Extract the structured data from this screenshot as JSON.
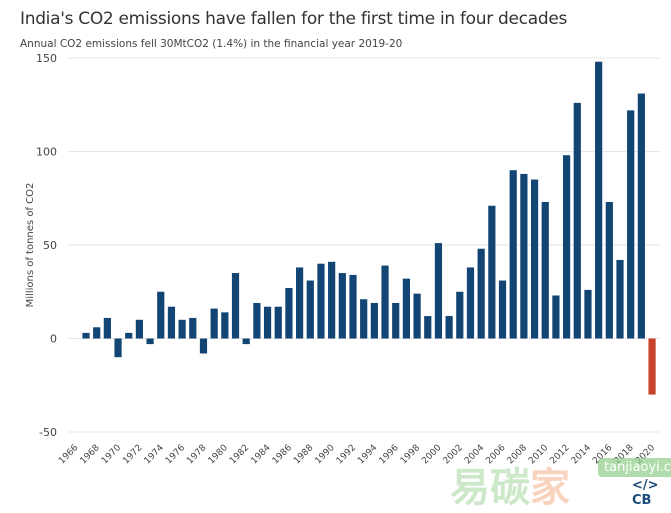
{
  "chart_data": {
    "type": "bar",
    "title": "India's CO2 emissions have fallen for the first time in four decades",
    "subtitle": "Annual CO2 emissions fell 30MtCO2 (1.4%) in the financial year 2019-20",
    "xlabel": "",
    "ylabel": "Millions of tonnes of CO2",
    "ylim": [
      -50,
      150
    ],
    "yticks": [
      "150",
      "100",
      "50",
      "0",
      "-50"
    ],
    "ytick_values": [
      150,
      100,
      50,
      0,
      -50
    ],
    "xticks": [
      "1966",
      "1968",
      "1970",
      "1972",
      "1974",
      "1976",
      "1978",
      "1980",
      "1982",
      "1984",
      "1986",
      "1988",
      "1990",
      "1992",
      "1994",
      "1996",
      "1998",
      "2000",
      "2002",
      "2004",
      "2006",
      "2008",
      "2010",
      "2012",
      "2014",
      "2016",
      "2018",
      "2020"
    ],
    "grid": true,
    "categories": [
      1967,
      1968,
      1969,
      1970,
      1971,
      1972,
      1973,
      1974,
      1975,
      1976,
      1977,
      1978,
      1979,
      1980,
      1981,
      1982,
      1983,
      1984,
      1985,
      1986,
      1987,
      1988,
      1989,
      1990,
      1991,
      1992,
      1993,
      1994,
      1995,
      1996,
      1997,
      1998,
      1999,
      2000,
      2001,
      2002,
      2003,
      2004,
      2005,
      2006,
      2007,
      2008,
      2009,
      2010,
      2011,
      2012,
      2013,
      2014,
      2015,
      2016,
      2017,
      2018,
      2019,
      2020
    ],
    "values": [
      3,
      6,
      11,
      -10,
      3,
      10,
      -3,
      25,
      17,
      10,
      11,
      -8,
      16,
      14,
      35,
      -3,
      19,
      17,
      17,
      27,
      38,
      31,
      40,
      41,
      35,
      34,
      21,
      19,
      39,
      19,
      32,
      24,
      12,
      51,
      12,
      25,
      38,
      48,
      71,
      31,
      90,
      88,
      85,
      73,
      23,
      98,
      126,
      26,
      148,
      73,
      42,
      122,
      131,
      -30
    ],
    "colors": {
      "increase": "#124574",
      "decrease": "#c8432b"
    }
  },
  "watermark": {
    "chars": [
      "易",
      "碳",
      "家"
    ],
    "tag": "tanjiaoyi",
    "domain": ".com",
    "logo": "</> CB"
  }
}
